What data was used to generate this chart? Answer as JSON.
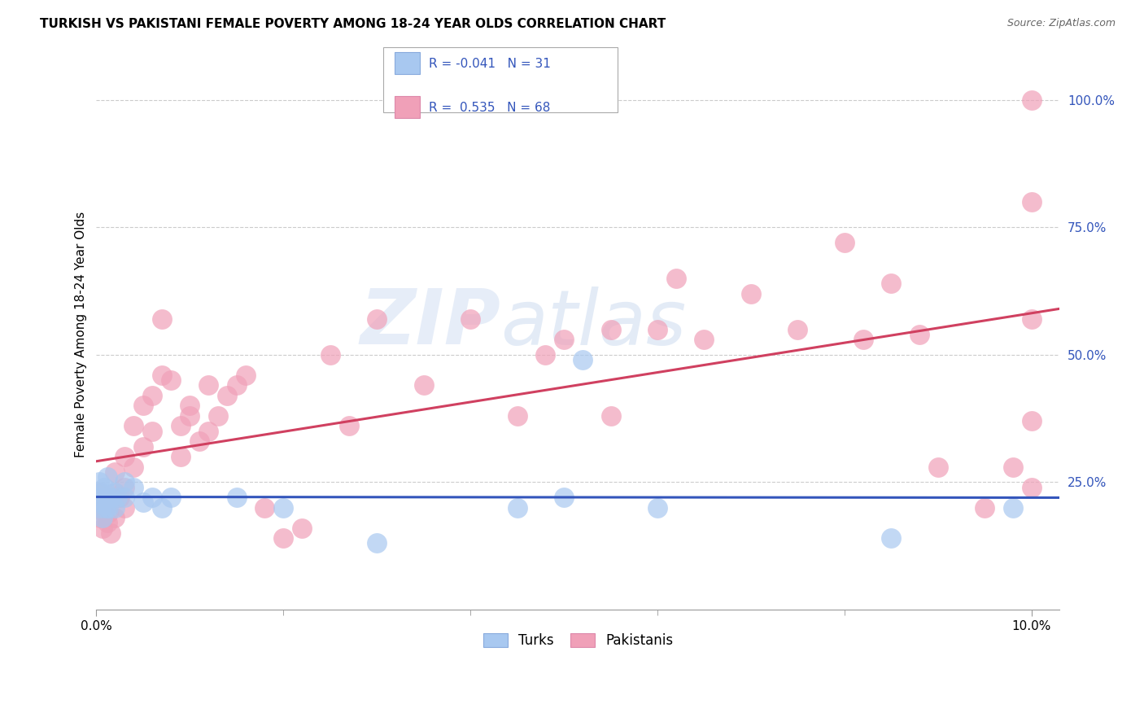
{
  "title": "TURKISH VS PAKISTANI FEMALE POVERTY AMONG 18-24 YEAR OLDS CORRELATION CHART",
  "source": "Source: ZipAtlas.com",
  "ylabel": "Female Poverty Among 18-24 Year Olds",
  "ytick_labels": [
    "25.0%",
    "50.0%",
    "75.0%",
    "100.0%"
  ],
  "ytick_values": [
    0.25,
    0.5,
    0.75,
    1.0
  ],
  "turks_R": -0.041,
  "turks_N": 31,
  "pakistanis_R": 0.535,
  "pakistanis_N": 68,
  "turks_color": "#A8C8F0",
  "pakistanis_color": "#F0A0B8",
  "turks_line_color": "#3355BB",
  "pakistanis_line_color": "#D04060",
  "background_color": "#FFFFFF",
  "grid_color": "#CCCCCC",
  "turks_x": [
    0.0002,
    0.0003,
    0.0004,
    0.0005,
    0.0006,
    0.0007,
    0.0008,
    0.001,
    0.001,
    0.0012,
    0.0013,
    0.0015,
    0.002,
    0.002,
    0.0022,
    0.003,
    0.003,
    0.004,
    0.005,
    0.006,
    0.007,
    0.008,
    0.015,
    0.02,
    0.03,
    0.045,
    0.05,
    0.052,
    0.06,
    0.085,
    0.098
  ],
  "turks_y": [
    0.22,
    0.25,
    0.2,
    0.23,
    0.21,
    0.18,
    0.24,
    0.22,
    0.2,
    0.26,
    0.2,
    0.22,
    0.23,
    0.2,
    0.22,
    0.25,
    0.22,
    0.24,
    0.21,
    0.22,
    0.2,
    0.22,
    0.22,
    0.2,
    0.13,
    0.2,
    0.22,
    0.49,
    0.2,
    0.14,
    0.2
  ],
  "pakistanis_x": [
    0.0002,
    0.0003,
    0.0004,
    0.0005,
    0.0006,
    0.0007,
    0.0008,
    0.001,
    0.0012,
    0.0013,
    0.0015,
    0.002,
    0.002,
    0.002,
    0.0025,
    0.003,
    0.003,
    0.003,
    0.004,
    0.004,
    0.005,
    0.005,
    0.006,
    0.006,
    0.007,
    0.007,
    0.008,
    0.009,
    0.009,
    0.01,
    0.01,
    0.011,
    0.012,
    0.012,
    0.013,
    0.014,
    0.015,
    0.016,
    0.018,
    0.02,
    0.022,
    0.025,
    0.027,
    0.03,
    0.035,
    0.04,
    0.045,
    0.048,
    0.05,
    0.055,
    0.055,
    0.06,
    0.062,
    0.065,
    0.07,
    0.075,
    0.08,
    0.082,
    0.085,
    0.088,
    0.09,
    0.095,
    0.098,
    0.1,
    0.1,
    0.1,
    0.1,
    0.1
  ],
  "pakistanis_y": [
    0.2,
    0.23,
    0.18,
    0.22,
    0.2,
    0.16,
    0.19,
    0.22,
    0.17,
    0.19,
    0.15,
    0.27,
    0.23,
    0.18,
    0.22,
    0.3,
    0.24,
    0.2,
    0.36,
    0.28,
    0.4,
    0.32,
    0.42,
    0.35,
    0.46,
    0.57,
    0.45,
    0.36,
    0.3,
    0.4,
    0.38,
    0.33,
    0.44,
    0.35,
    0.38,
    0.42,
    0.44,
    0.46,
    0.2,
    0.14,
    0.16,
    0.5,
    0.36,
    0.57,
    0.44,
    0.57,
    0.38,
    0.5,
    0.53,
    0.55,
    0.38,
    0.55,
    0.65,
    0.53,
    0.62,
    0.55,
    0.72,
    0.53,
    0.64,
    0.54,
    0.28,
    0.2,
    0.28,
    1.0,
    0.57,
    0.37,
    0.24,
    0.8
  ],
  "watermark_zip": "ZIP",
  "watermark_atlas": "atlas",
  "legend_box_color": "#FFFFFF",
  "legend_border_color": "#AAAAAA"
}
